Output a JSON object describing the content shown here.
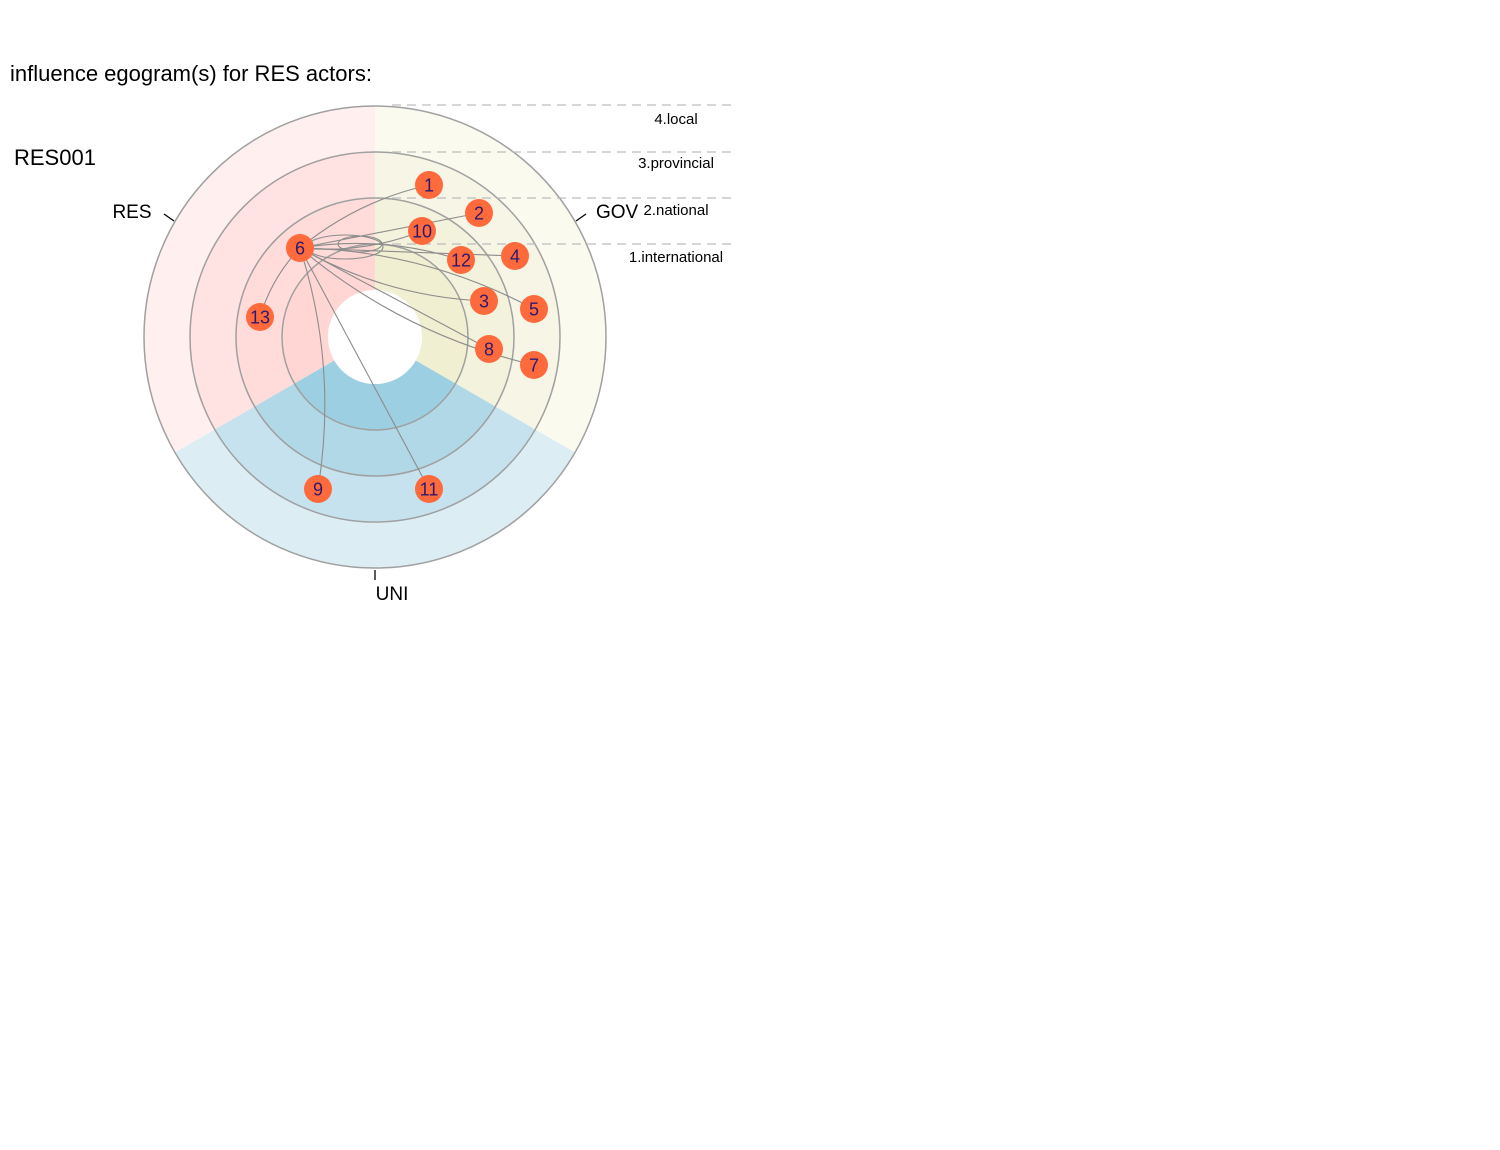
{
  "title": {
    "line1": "influence egogram(s) for RES actors:",
    "line2": "RES001"
  },
  "colors": {
    "res": "#ffe1e0",
    "res_outer": "#fff0ef",
    "gov": "#f6f5e2",
    "gov_outer": "#fafaee",
    "uni": "#c8e3ee",
    "uni_outer": "#dcedf4",
    "ring": "#a0a0a0",
    "node": "#ff6a3d",
    "node_text": "#2a1a6e",
    "edge": "#8c8c8c"
  },
  "sectors": [
    {
      "name": "RES",
      "label": "RES"
    },
    {
      "name": "GOV",
      "label": "GOV"
    },
    {
      "name": "UNI",
      "label": "UNI"
    }
  ],
  "levels": [
    "4.local",
    "3.provincial",
    "2.national",
    "1.international"
  ],
  "nodes": [
    {
      "id": "1",
      "label": "1"
    },
    {
      "id": "2",
      "label": "2"
    },
    {
      "id": "3",
      "label": "3"
    },
    {
      "id": "4",
      "label": "4"
    },
    {
      "id": "5",
      "label": "5"
    },
    {
      "id": "6",
      "label": "6"
    },
    {
      "id": "7",
      "label": "7"
    },
    {
      "id": "8",
      "label": "8"
    },
    {
      "id": "9",
      "label": "9"
    },
    {
      "id": "10",
      "label": "10"
    },
    {
      "id": "11",
      "label": "11"
    },
    {
      "id": "12",
      "label": "12"
    },
    {
      "id": "13",
      "label": "13"
    }
  ],
  "edges": [
    [
      "6",
      "1"
    ],
    [
      "6",
      "2"
    ],
    [
      "6",
      "10"
    ],
    [
      "6",
      "12"
    ],
    [
      "6",
      "4"
    ],
    [
      "6",
      "3"
    ],
    [
      "6",
      "5"
    ],
    [
      "6",
      "8"
    ],
    [
      "6",
      "7"
    ],
    [
      "6",
      "9"
    ],
    [
      "6",
      "11"
    ],
    [
      "6",
      "13"
    ]
  ]
}
